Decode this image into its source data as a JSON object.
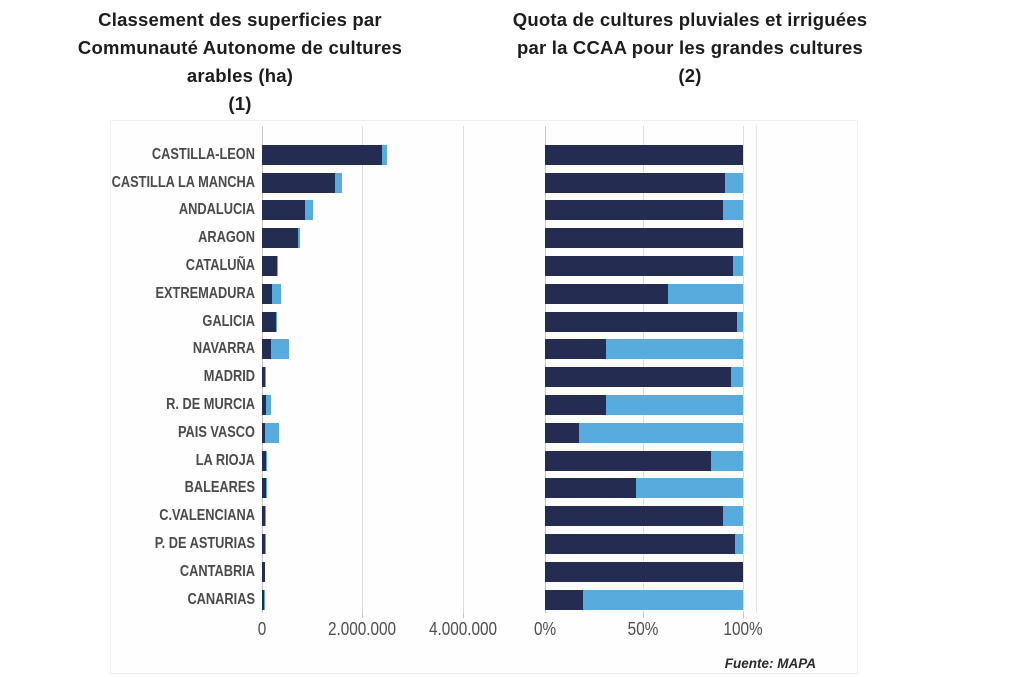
{
  "left_chart": {
    "title": "Classement des superficies par\nCommunauté Autonome de cultures\narables (ha)\n(1)"
  },
  "right_chart": {
    "title": "Quota de cultures pluviales et irriguées\npar la CCAA pour les grandes cultures\n(2)"
  },
  "footer": {
    "source": "Fuente: MAPA"
  },
  "colors": {
    "pluvial_dark": "#242C52",
    "irrigue_light": "#57ABDD"
  },
  "chart_data": [
    {
      "type": "bar",
      "orientation": "horizontal",
      "title": "Classement des superficies par Communauté Autonome de cultures arables (ha) (1)",
      "categories": [
        "CASTILLA-LEON",
        "CASTILLA LA MANCHA",
        "ANDALUCIA",
        "ARAGON",
        "CATALUÑA",
        "EXTREMADURA",
        "GALICIA",
        "NAVARRA",
        "MADRID",
        "R. DE MURCIA",
        "PAIS VASCO",
        "LA RIOJA",
        "BALEARES",
        "C.VALENCIANA",
        "P. DE ASTURIAS",
        "CANTABRIA",
        "CANARIAS"
      ],
      "series": [
        {
          "name": "pluviales",
          "color": "#242C52",
          "values": [
            2400000,
            1460000,
            850000,
            720000,
            290000,
            190000,
            270000,
            170000,
            60000,
            80000,
            60000,
            80000,
            80000,
            60000,
            50000,
            50000,
            40000
          ]
        },
        {
          "name": "irriguées",
          "color": "#57ABDD",
          "values": [
            100000,
            140000,
            160000,
            40000,
            30000,
            190000,
            20000,
            360000,
            10000,
            100000,
            280000,
            20000,
            20000,
            10000,
            10000,
            0,
            10000
          ]
        }
      ],
      "xlabel": "ha",
      "x_ticks": [
        "0",
        "2.000.000",
        "4.000.000"
      ],
      "xlim": [
        0,
        4960000
      ],
      "grid": true,
      "legend": false
    },
    {
      "type": "stacked-bar-100",
      "orientation": "horizontal",
      "title": "Quota de cultures pluviales et irriguées par la CCAA pour les grandes cultures (2)",
      "categories": [
        "CASTILLA-LEON",
        "CASTILLA LA MANCHA",
        "ANDALUCIA",
        "ARAGON",
        "CATALUÑA",
        "EXTREMADURA",
        "GALICIA",
        "NAVARRA",
        "MADRID",
        "R. DE MURCIA",
        "PAIS VASCO",
        "LA RIOJA",
        "BALEARES",
        "C.VALENCIANA",
        "P. DE ASTURIAS",
        "CANTABRIA",
        "CANARIAS"
      ],
      "series": [
        {
          "name": "pluviales (%)",
          "color": "#242C52",
          "values": [
            100,
            91,
            90,
            100,
            95,
            62,
            97,
            31,
            94,
            31,
            17,
            84,
            46,
            90,
            96,
            100,
            19
          ]
        },
        {
          "name": "irriguées (%)",
          "color": "#57ABDD",
          "values": [
            0,
            9,
            10,
            0,
            5,
            38,
            3,
            69,
            6,
            69,
            83,
            16,
            54,
            10,
            4,
            0,
            81
          ]
        }
      ],
      "xlabel": "%",
      "x_ticks": [
        "0%",
        "50%",
        "100%"
      ],
      "xlim": [
        0,
        100
      ],
      "grid": true,
      "legend": false
    }
  ]
}
